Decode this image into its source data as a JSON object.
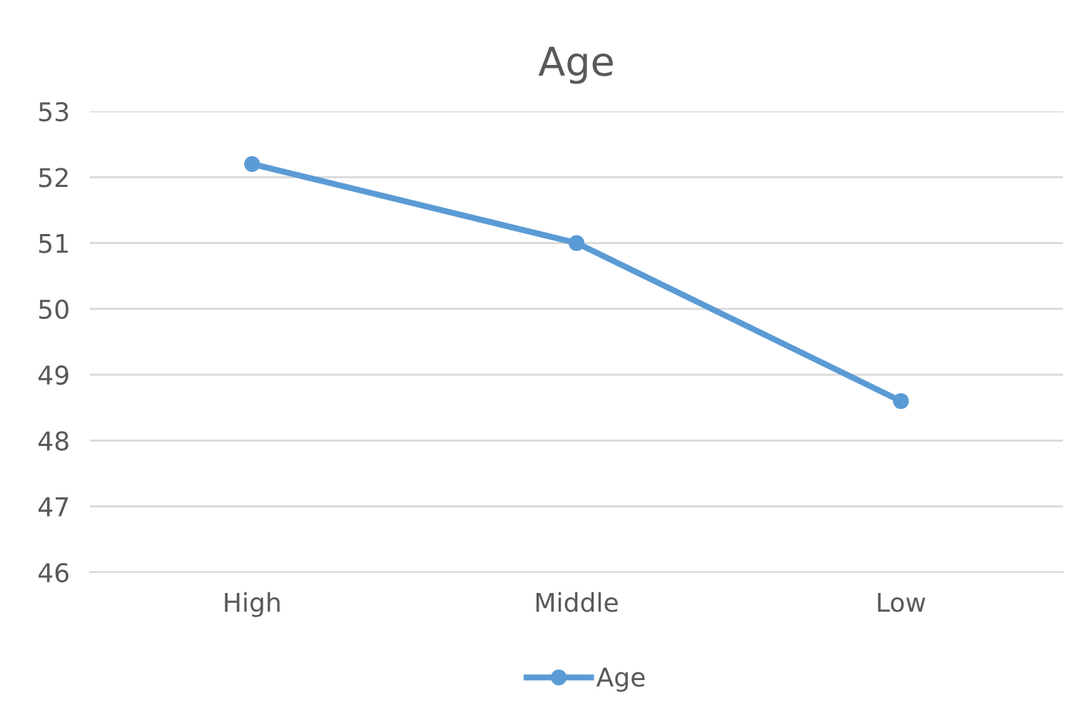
{
  "chart_data": {
    "type": "line",
    "title": "Age",
    "categories": [
      "High",
      "Middle",
      "Low"
    ],
    "series": [
      {
        "name": "Age",
        "color": "#5b9bd5",
        "values": [
          52.2,
          51.0,
          48.6
        ]
      }
    ],
    "ylim": [
      46,
      53
    ],
    "yticks": [
      46,
      47,
      48,
      49,
      50,
      51,
      52,
      53
    ],
    "grid": "y",
    "legend": "bottom",
    "marker": "circle",
    "line_style": "solid"
  }
}
